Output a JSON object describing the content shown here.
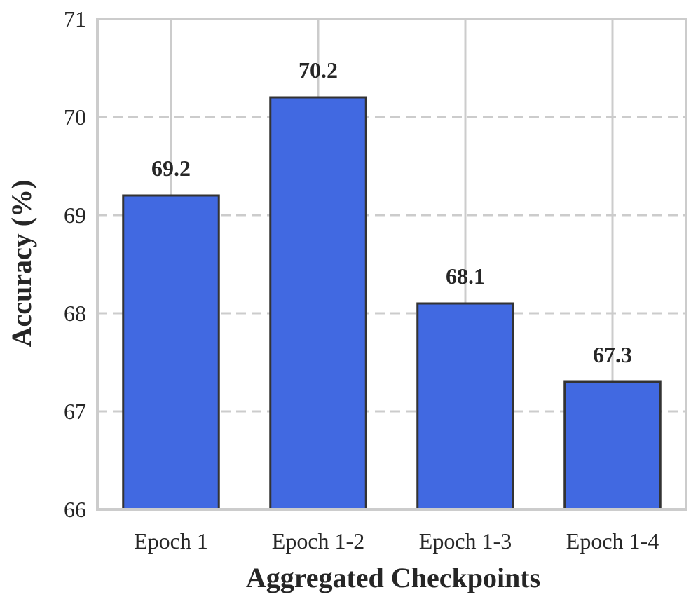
{
  "chart_data": {
    "type": "bar",
    "title": "",
    "xlabel": "Aggregated Checkpoints",
    "ylabel": "Accuracy (%)",
    "categories": [
      "Epoch 1",
      "Epoch 1-2",
      "Epoch 1-3",
      "Epoch 1-4"
    ],
    "values": [
      69.2,
      70.2,
      68.1,
      67.3
    ],
    "value_labels": [
      "69.2",
      "70.2",
      "68.1",
      "67.3"
    ],
    "ylim": [
      66,
      71
    ],
    "yticks": [
      66,
      67,
      68,
      69,
      70,
      71
    ],
    "ytick_labels": [
      "66",
      "67",
      "68",
      "69",
      "70",
      "71"
    ],
    "grid": {
      "vertical": "solid",
      "horizontal": "dashed"
    },
    "colors": {
      "bar_fill": "#4169E1",
      "bar_edge": "#333333",
      "grid": "#cccccc",
      "frame": "#cccccc",
      "text": "#262626"
    }
  }
}
